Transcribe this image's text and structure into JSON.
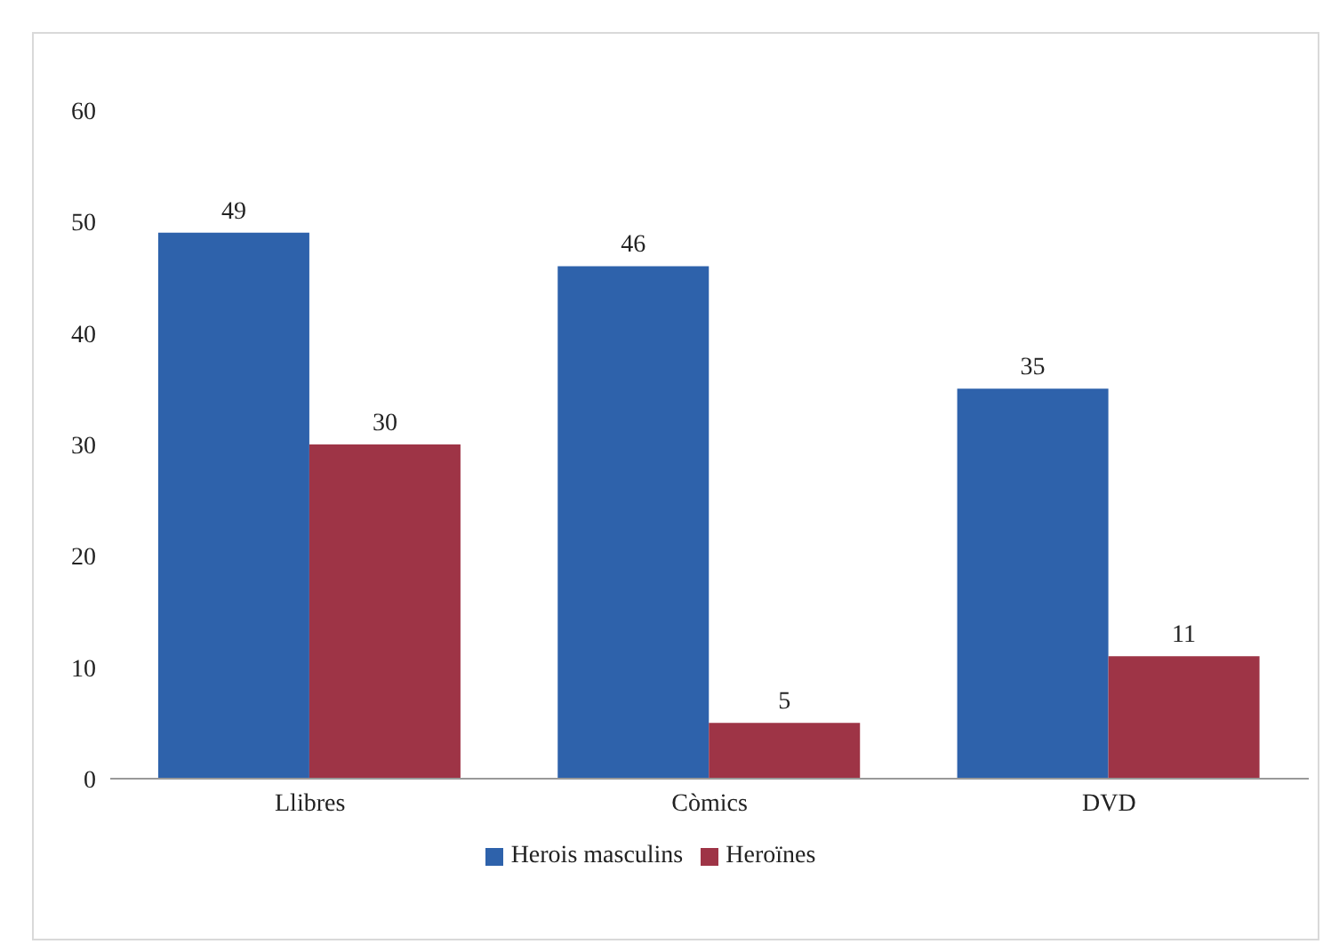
{
  "chart_data": {
    "type": "bar",
    "categories": [
      "Llibres",
      "Còmics",
      "DVD"
    ],
    "series": [
      {
        "name": "Herois masculins",
        "color": "#2e62ab",
        "values": [
          49,
          46,
          35
        ]
      },
      {
        "name": "Heroïnes",
        "color": "#9e3446",
        "values": [
          30,
          5,
          11
        ]
      }
    ],
    "ylim": [
      0,
      60
    ],
    "yticks": [
      0,
      10,
      20,
      30,
      40,
      50,
      60
    ],
    "legend": "bottom",
    "data_labels": true
  }
}
